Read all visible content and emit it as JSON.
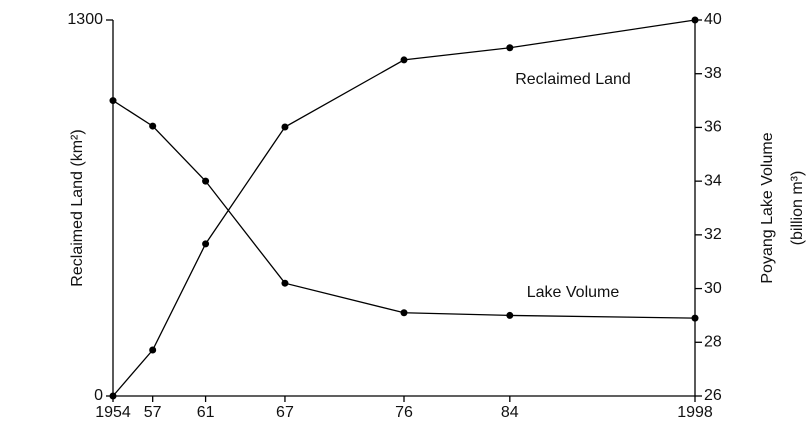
{
  "chart_data": {
    "type": "line",
    "x": [
      1954,
      1957,
      1961,
      1967,
      1976,
      1984,
      1998
    ],
    "xlim": [
      1954,
      1998
    ],
    "xticks": [
      1954,
      {
        "value": 1957,
        "label": "57"
      },
      {
        "value": 1961,
        "label": "61"
      },
      {
        "value": 1967,
        "label": "67"
      },
      {
        "value": 1976,
        "label": "76"
      },
      {
        "value": 1984,
        "label": "84"
      },
      1998
    ],
    "ylabel": "Reclaimed Land (km²)",
    "y2label": [
      "Poyang Lake Volume",
      "(billion m³)"
    ],
    "ylim": [
      0,
      1300
    ],
    "yticks": [
      0,
      1300
    ],
    "y2lim": [
      26,
      40
    ],
    "y2ticks": [
      26,
      28,
      30,
      32,
      34,
      36,
      38,
      40
    ],
    "series": [
      {
        "name": "Reclaimed Land",
        "color": "#000000",
        "values": [
          0,
          159,
          526,
          930,
          1162,
          1204,
          1300
        ]
      },
      {
        "name": "Lake Volume",
        "color": "#000000",
        "axis": "y2",
        "values": [
          37.0,
          36.05,
          34.0,
          30.2,
          29.1,
          29.0,
          28.9
        ]
      }
    ]
  }
}
